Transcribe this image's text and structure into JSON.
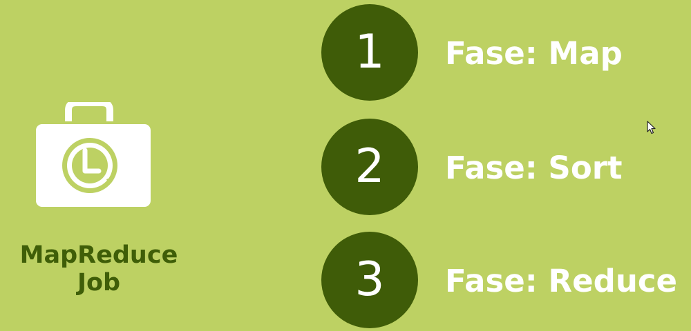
{
  "job": {
    "icon": "briefcase-clock-icon",
    "title_line1": "MapReduce",
    "title_line2": "Job"
  },
  "steps": [
    {
      "number": "1",
      "label": "Fase: Map"
    },
    {
      "number": "2",
      "label": "Fase: Sort"
    },
    {
      "number": "3",
      "label": "Fase: Reduce"
    }
  ],
  "colors": {
    "background": "#bdd163",
    "circle": "#3f5c08",
    "title_text": "#3f5e08",
    "label_text": "#ffffff"
  }
}
